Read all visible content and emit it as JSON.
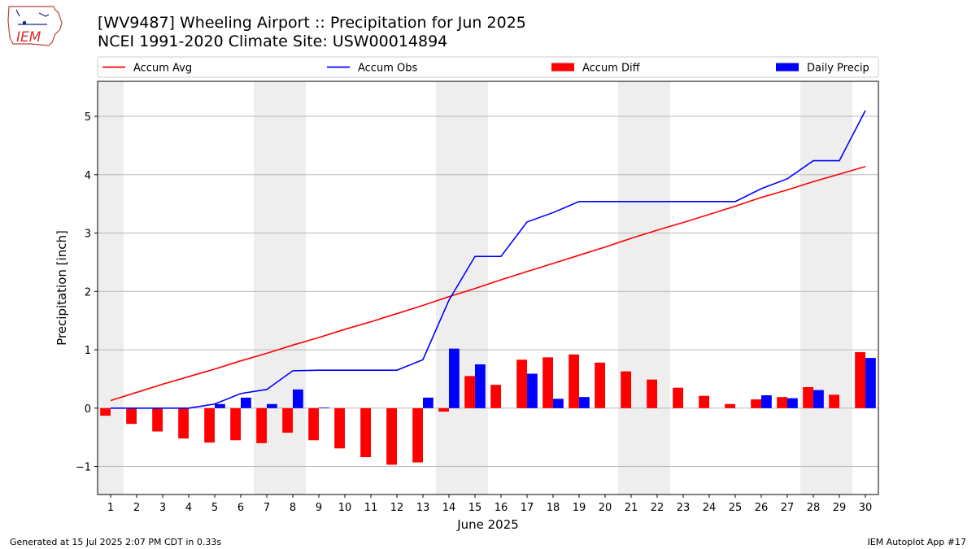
{
  "header": {
    "title_line1": "[WV9487] Wheeling Airport :: Precipitation for Jun 2025",
    "title_line2": "NCEI 1991-2020 Climate Site: USW00014894",
    "logo_text": "IEM"
  },
  "footer": {
    "generated": "Generated at 15 Jul 2025 2:07 PM CDT in 0.33s",
    "app": "IEM Autoplot App #17"
  },
  "colors": {
    "accum_avg": "#ff0000",
    "accum_obs": "#0000ff",
    "accum_diff": "#ff0000",
    "daily_precip": "#0000ff",
    "weekend_shade": "#eeeeee",
    "grid": "#b0b0b0"
  },
  "chart_data": {
    "type": "bar",
    "xlabel": "June 2025",
    "ylabel": "Precipitation [inch]",
    "xlim": [
      0.5,
      30.5
    ],
    "ylim": [
      -1.48,
      5.6
    ],
    "yticks": [
      -1,
      0,
      1,
      2,
      3,
      4,
      5
    ],
    "ytick_labels": [
      "−1",
      "0",
      "1",
      "2",
      "3",
      "4",
      "5"
    ],
    "grid": "horizontal",
    "legend_position": "top",
    "days": [
      1,
      2,
      3,
      4,
      5,
      6,
      7,
      8,
      9,
      10,
      11,
      12,
      13,
      14,
      15,
      16,
      17,
      18,
      19,
      20,
      21,
      22,
      23,
      24,
      25,
      26,
      27,
      28,
      29,
      30
    ],
    "shaded_day_ranges": [
      [
        0.5,
        1.5
      ],
      [
        6.5,
        8.5
      ],
      [
        13.5,
        15.5
      ],
      [
        20.5,
        22.5
      ],
      [
        27.5,
        29.5
      ]
    ],
    "series": [
      {
        "name": "Accum Avg",
        "kind": "line",
        "values": [
          0.13,
          0.27,
          0.41,
          0.54,
          0.67,
          0.81,
          0.94,
          1.08,
          1.21,
          1.35,
          1.48,
          1.62,
          1.76,
          1.91,
          2.05,
          2.2,
          2.34,
          2.48,
          2.62,
          2.76,
          2.91,
          3.05,
          3.18,
          3.32,
          3.46,
          3.61,
          3.74,
          3.88,
          4.01,
          4.14
        ]
      },
      {
        "name": "Accum Obs",
        "kind": "line",
        "values": [
          0.0,
          0.0,
          0.0,
          0.0,
          0.07,
          0.25,
          0.32,
          0.64,
          0.65,
          0.65,
          0.65,
          0.65,
          0.83,
          1.85,
          2.6,
          2.6,
          3.19,
          3.35,
          3.54,
          3.54,
          3.54,
          3.54,
          3.54,
          3.54,
          3.54,
          3.76,
          3.93,
          4.24,
          4.24,
          5.1
        ]
      },
      {
        "name": "Accum Diff",
        "kind": "bar",
        "offset": "left",
        "values": [
          -0.13,
          -0.27,
          -0.4,
          -0.52,
          -0.59,
          -0.55,
          -0.6,
          -0.42,
          -0.55,
          -0.69,
          -0.84,
          -0.97,
          -0.93,
          -0.06,
          0.55,
          0.4,
          0.83,
          0.87,
          0.92,
          0.78,
          0.63,
          0.49,
          0.35,
          0.21,
          0.07,
          0.15,
          0.19,
          0.36,
          0.23,
          0.96
        ]
      },
      {
        "name": "Daily Precip",
        "kind": "bar",
        "offset": "right",
        "values": [
          0.0,
          0.0,
          0.0,
          0.0,
          0.07,
          0.18,
          0.07,
          0.32,
          0.01,
          0.0,
          0.0,
          0.0,
          0.18,
          1.02,
          0.75,
          0.0,
          0.59,
          0.16,
          0.19,
          0.0,
          0.0,
          0.0,
          0.0,
          0.0,
          0.0,
          0.22,
          0.17,
          0.31,
          0.0,
          0.86
        ]
      }
    ]
  }
}
